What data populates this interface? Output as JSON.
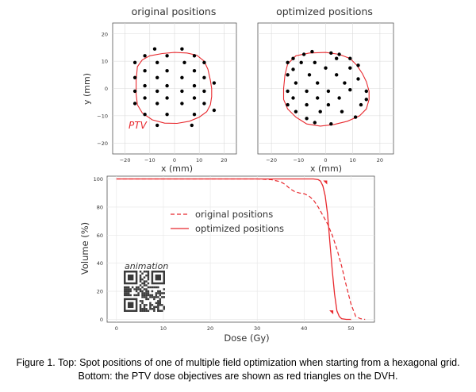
{
  "colors": {
    "red": "#e8282d",
    "dot": "#000000",
    "grid": "#d9d9d9",
    "axis": "#333333",
    "qr": "#3a3a3a"
  },
  "chart_data": [
    {
      "type": "scatter",
      "title": "original positions",
      "xlabel": "x (mm)",
      "ylabel": "y (mm)",
      "xlim": [
        -25,
        25
      ],
      "ylim": [
        -24,
        24
      ],
      "xticks": [
        "-20",
        "-10",
        "0",
        "10",
        "20"
      ],
      "yticks": [
        "20",
        "10",
        "0",
        "-10",
        "-20"
      ],
      "annotation": "PTV",
      "contour": [
        [
          -15,
          8
        ],
        [
          -13,
          10.5
        ],
        [
          -10,
          12
        ],
        [
          -5,
          12.8
        ],
        [
          0,
          13.2
        ],
        [
          5,
          13
        ],
        [
          9,
          12.2
        ],
        [
          12,
          10
        ],
        [
          13.5,
          7
        ],
        [
          14.5,
          3
        ],
        [
          15,
          0
        ],
        [
          15,
          -3
        ],
        [
          14.5,
          -6
        ],
        [
          13,
          -8.5
        ],
        [
          10,
          -10.5
        ],
        [
          6,
          -12
        ],
        [
          1,
          -12.8
        ],
        [
          -4,
          -12.7
        ],
        [
          -9,
          -11.5
        ],
        [
          -13,
          -9
        ],
        [
          -15,
          -6
        ],
        [
          -15.5,
          -2
        ],
        [
          -15.5,
          3
        ]
      ],
      "points": [
        [
          -8,
          14.5
        ],
        [
          3,
          14.5
        ],
        [
          -12,
          12
        ],
        [
          -3,
          12
        ],
        [
          8,
          12
        ],
        [
          -16,
          9.5
        ],
        [
          -7,
          9.5
        ],
        [
          4,
          9.5
        ],
        [
          12,
          9.5
        ],
        [
          -12,
          6.5
        ],
        [
          -3,
          6.5
        ],
        [
          8,
          6.5
        ],
        [
          -16,
          4
        ],
        [
          -7,
          4
        ],
        [
          3,
          4
        ],
        [
          12,
          4
        ],
        [
          16,
          2
        ],
        [
          -12,
          1
        ],
        [
          -3,
          1
        ],
        [
          8,
          1
        ],
        [
          -16,
          -1
        ],
        [
          -7,
          -1
        ],
        [
          3,
          -1
        ],
        [
          12,
          -1
        ],
        [
          -12,
          -3.5
        ],
        [
          -3,
          -3.5
        ],
        [
          8,
          -3.5
        ],
        [
          -16,
          -5.5
        ],
        [
          -7,
          -5.5
        ],
        [
          3,
          -5.5
        ],
        [
          12,
          -5.5
        ],
        [
          16,
          -8
        ],
        [
          -12,
          -9.5
        ],
        [
          -3,
          -9.5
        ],
        [
          8,
          -9.5
        ],
        [
          -7,
          -13.5
        ],
        [
          7,
          -13.5
        ]
      ]
    },
    {
      "type": "scatter",
      "title": "optimized positions",
      "xlabel": "x (mm)",
      "xlim": [
        -25,
        25
      ],
      "ylim": [
        -24,
        24
      ],
      "xticks": [
        "-20",
        "-10",
        "0",
        "10",
        "20"
      ],
      "contour": [
        [
          -14,
          9
        ],
        [
          -11,
          12
        ],
        [
          -6,
          13
        ],
        [
          0,
          13.2
        ],
        [
          5,
          12.5
        ],
        [
          9,
          11
        ],
        [
          11.5,
          8.5
        ],
        [
          13.5,
          5.5
        ],
        [
          15,
          2.5
        ],
        [
          16,
          -1
        ],
        [
          16,
          -4
        ],
        [
          15,
          -7.5
        ],
        [
          12.5,
          -10
        ],
        [
          8,
          -12
        ],
        [
          3,
          -13.2
        ],
        [
          -2,
          -13.8
        ],
        [
          -7,
          -13
        ],
        [
          -11,
          -10.5
        ],
        [
          -14,
          -7.5
        ],
        [
          -15.5,
          -4
        ],
        [
          -15.5,
          0
        ],
        [
          -15,
          5
        ]
      ],
      "points": [
        [
          -5,
          13.5
        ],
        [
          2,
          13
        ],
        [
          -8,
          12.5
        ],
        [
          5,
          12.5
        ],
        [
          -12,
          11
        ],
        [
          4,
          11
        ],
        [
          9,
          11
        ],
        [
          -14,
          9.5
        ],
        [
          -9,
          9.5
        ],
        [
          -4,
          9.5
        ],
        [
          12,
          8.5
        ],
        [
          -12,
          7
        ],
        [
          0,
          7.5
        ],
        [
          9,
          7.5
        ],
        [
          -14,
          5
        ],
        [
          -6,
          5
        ],
        [
          4,
          5
        ],
        [
          12,
          3.5
        ],
        [
          -11,
          2
        ],
        [
          -3,
          2
        ],
        [
          7,
          2
        ],
        [
          -14,
          -1
        ],
        [
          -7,
          -1
        ],
        [
          1,
          -1
        ],
        [
          9,
          -0.5
        ],
        [
          15,
          -1
        ],
        [
          -12,
          -3.5
        ],
        [
          -3,
          -3.5
        ],
        [
          5,
          -3.5
        ],
        [
          15,
          -4
        ],
        [
          -14,
          -6
        ],
        [
          -7,
          -6
        ],
        [
          1,
          -6
        ],
        [
          13,
          -6
        ],
        [
          -11,
          -8.5
        ],
        [
          -2,
          -8.5
        ],
        [
          6,
          -8.5
        ],
        [
          11,
          -10.5
        ],
        [
          -7,
          -11
        ],
        [
          -4,
          -12.5
        ],
        [
          2,
          -13
        ]
      ]
    },
    {
      "type": "line",
      "xlabel": "Dose (Gy)",
      "ylabel": "Volume (%)",
      "xlim": [
        -2,
        55
      ],
      "ylim": [
        -2,
        102
      ],
      "xticks": [
        0,
        10,
        20,
        30,
        40,
        50
      ],
      "yticks": [
        0,
        20,
        40,
        60,
        80,
        100
      ],
      "series": [
        {
          "name": "original positions",
          "style": "dashed",
          "x": [
            0,
            30,
            33,
            35,
            36,
            37,
            38,
            39,
            40,
            41,
            42,
            43,
            44,
            45,
            46,
            47,
            48,
            49,
            50,
            51,
            52,
            53
          ],
          "y": [
            100,
            100,
            99.5,
            98,
            96,
            93,
            91,
            90,
            89.5,
            88,
            85,
            80,
            74,
            68,
            60,
            50,
            38,
            24,
            11,
            2,
            0.5,
            0
          ]
        },
        {
          "name": "optimized positions",
          "style": "solid",
          "x": [
            0,
            40,
            42,
            43,
            43.5,
            44,
            44.5,
            45,
            45.5,
            46,
            46.5,
            47,
            47.5,
            48,
            49,
            50
          ],
          "y": [
            100,
            100,
            100,
            99.5,
            98.5,
            95,
            88,
            75,
            55,
            35,
            18,
            6,
            2,
            0.5,
            0,
            0
          ]
        }
      ],
      "objective_markers": [
        [
          44.5,
          97.5
        ],
        [
          45.8,
          5
        ]
      ],
      "annotation": "animation"
    }
  ],
  "caption": {
    "line1": "Figure 1. Top: Spot positions of one of multiple field optimization when starting from a hexagonal grid.",
    "line2": "Bottom: the PTV dose objectives are shown as red triangles on the DVH."
  }
}
